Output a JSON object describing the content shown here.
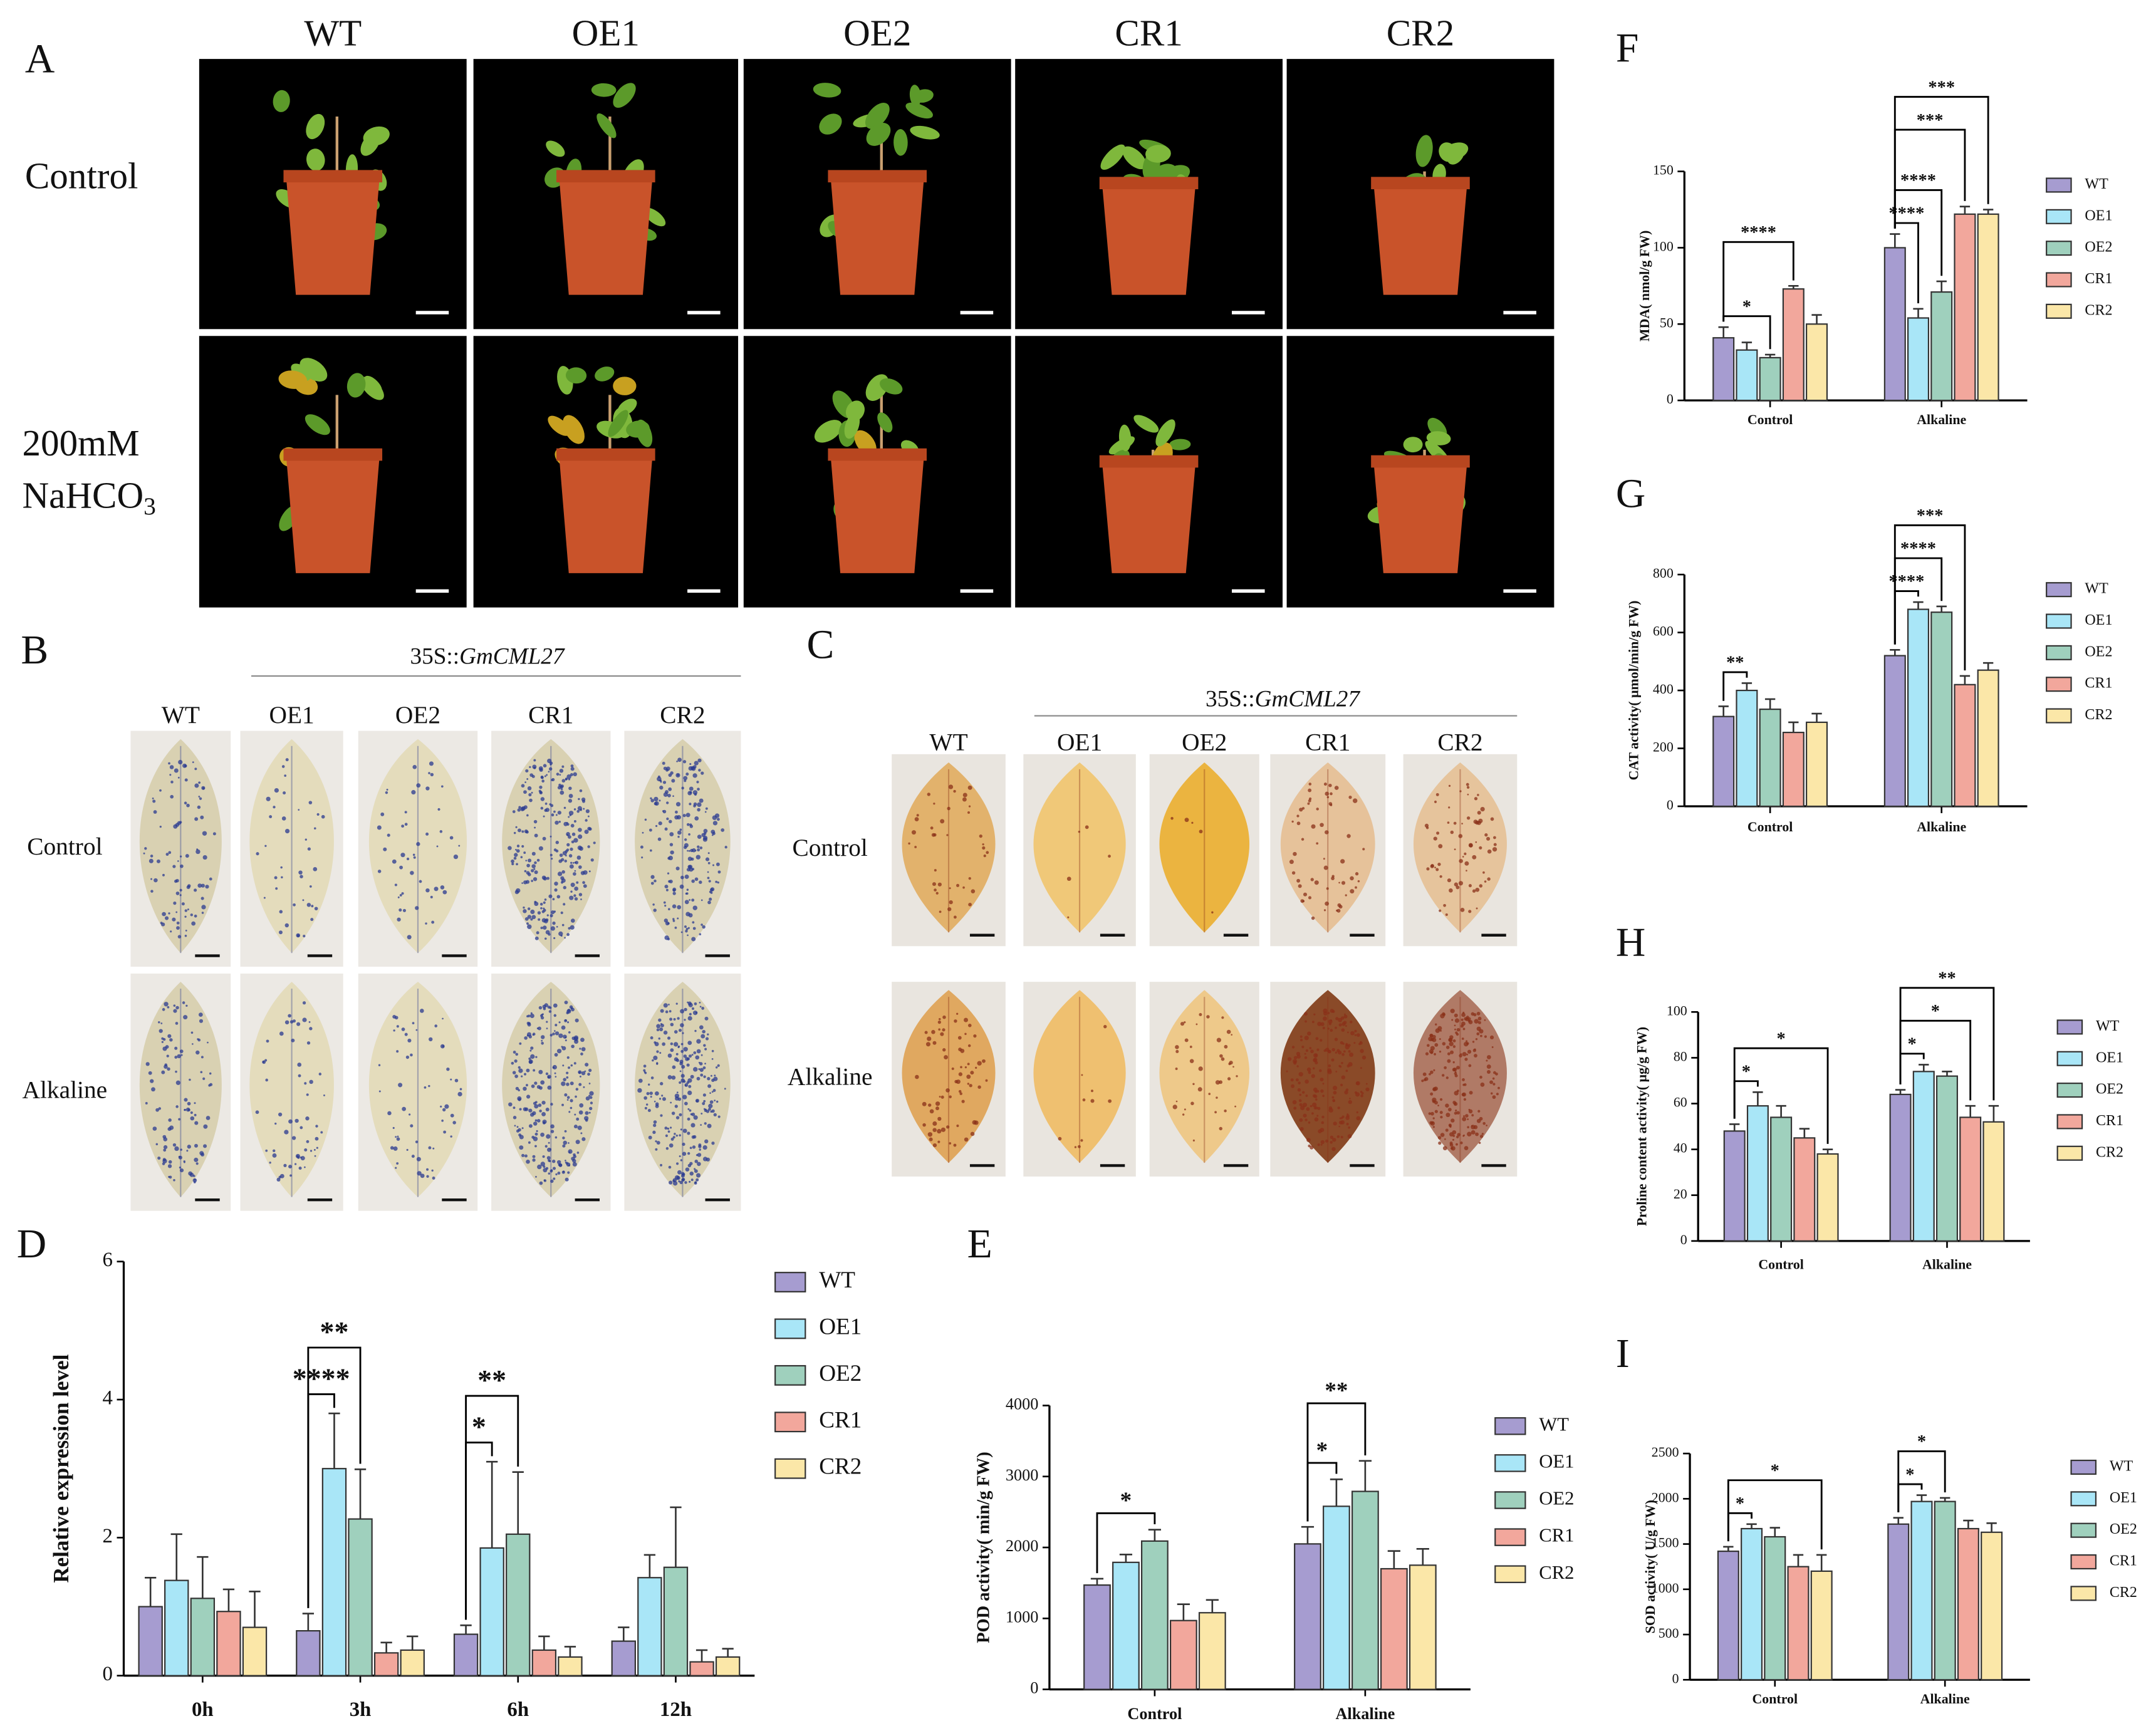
{
  "panel_a": {
    "label": "A",
    "columns": [
      "WT",
      "OE1",
      "OE2",
      "CR1",
      "CR2"
    ],
    "row_labels": {
      "control": "Control",
      "stress_line1": "200mM",
      "stress_line2": "NaHCO",
      "stress_subscript": "3"
    }
  },
  "panel_b": {
    "label": "B",
    "construct_prefix": "35S::",
    "construct_gene": "GmCML27",
    "columns": [
      "WT",
      "OE1",
      "OE2",
      "CR1",
      "CR2"
    ],
    "row_labels": [
      "Control",
      "Alkaline"
    ]
  },
  "panel_c": {
    "label": "C",
    "construct_prefix": "35S::",
    "construct_gene": "GmCML27",
    "columns": [
      "WT",
      "OE1",
      "OE2",
      "CR1",
      "CR2"
    ],
    "row_labels": [
      "Control",
      "Alkaline"
    ]
  },
  "chart_data": [
    {
      "type": "bar",
      "panel": "D",
      "ylabel": "Relative expression level",
      "categories": [
        "0h",
        "3h",
        "6h",
        "12h"
      ],
      "series": [
        {
          "name": "WT",
          "color": "#a69cd0",
          "values": [
            1.0,
            0.65,
            0.6,
            0.5
          ],
          "errors": [
            0.42,
            0.25,
            0.13,
            0.2
          ]
        },
        {
          "name": "OE1",
          "color": "#a9e6f7",
          "values": [
            1.38,
            3.0,
            1.85,
            1.42
          ],
          "errors": [
            0.67,
            0.8,
            1.25,
            0.33
          ]
        },
        {
          "name": "OE2",
          "color": "#9fd0bd",
          "values": [
            1.12,
            2.27,
            2.05,
            1.57
          ],
          "errors": [
            0.6,
            0.72,
            0.9,
            0.87
          ]
        },
        {
          "name": "CR1",
          "color": "#f2a79c",
          "values": [
            0.93,
            0.33,
            0.37,
            0.2
          ],
          "errors": [
            0.32,
            0.15,
            0.2,
            0.17
          ]
        },
        {
          "name": "CR2",
          "color": "#fbe7a8",
          "values": [
            0.7,
            0.37,
            0.27,
            0.27
          ],
          "errors": [
            0.52,
            0.2,
            0.15,
            0.12
          ]
        }
      ],
      "ylim": [
        0,
        6
      ],
      "yticks": [
        0,
        2,
        4,
        6
      ],
      "annotations": [
        {
          "text": "****",
          "category": "3h",
          "pair": [
            "WT",
            "OE1"
          ]
        },
        {
          "text": "**",
          "category": "3h",
          "pair": [
            "WT",
            "OE2"
          ]
        },
        {
          "text": "*",
          "category": "6h",
          "pair": [
            "WT",
            "OE1"
          ]
        },
        {
          "text": "**",
          "category": "6h",
          "pair": [
            "WT",
            "OE2"
          ]
        }
      ]
    },
    {
      "type": "bar",
      "panel": "E",
      "ylabel": "POD activity( min/g FW)",
      "categories": [
        "Control",
        "Alkaline"
      ],
      "series": [
        {
          "name": "WT",
          "color": "#a69cd0",
          "values": [
            1470,
            2050
          ],
          "errors": [
            90,
            240
          ]
        },
        {
          "name": "OE1",
          "color": "#a9e6f7",
          "values": [
            1790,
            2580
          ],
          "errors": [
            110,
            380
          ]
        },
        {
          "name": "OE2",
          "color": "#9fd0bd",
          "values": [
            2090,
            2790
          ],
          "errors": [
            160,
            430
          ]
        },
        {
          "name": "CR1",
          "color": "#f2a79c",
          "values": [
            970,
            1700
          ],
          "errors": [
            230,
            250
          ]
        },
        {
          "name": "CR2",
          "color": "#fbe7a8",
          "values": [
            1080,
            1750
          ],
          "errors": [
            180,
            230
          ]
        }
      ],
      "ylim": [
        0,
        4000
      ],
      "yticks": [
        0,
        1000,
        2000,
        3000,
        4000
      ],
      "annotations": [
        {
          "text": "*",
          "category": "Control",
          "pair": [
            "WT",
            "OE2"
          ]
        },
        {
          "text": "*",
          "category": "Alkaline",
          "pair": [
            "WT",
            "OE1"
          ]
        },
        {
          "text": "**",
          "category": "Alkaline",
          "pair": [
            "WT",
            "OE2"
          ]
        }
      ]
    },
    {
      "type": "bar",
      "panel": "F",
      "ylabel": "MDA( nmol/g FW)",
      "categories": [
        "Control",
        "Alkaline"
      ],
      "series": [
        {
          "name": "WT",
          "color": "#a69cd0",
          "values": [
            41,
            100
          ],
          "errors": [
            7,
            9
          ]
        },
        {
          "name": "OE1",
          "color": "#a9e6f7",
          "values": [
            33,
            54
          ],
          "errors": [
            5,
            6
          ]
        },
        {
          "name": "OE2",
          "color": "#9fd0bd",
          "values": [
            28,
            71
          ],
          "errors": [
            2,
            7
          ]
        },
        {
          "name": "CR1",
          "color": "#f2a79c",
          "values": [
            73,
            122
          ],
          "errors": [
            2,
            5
          ]
        },
        {
          "name": "CR2",
          "color": "#fbe7a8",
          "values": [
            50,
            122
          ],
          "errors": [
            6,
            3
          ]
        }
      ],
      "ylim": [
        0,
        150
      ],
      "yticks": [
        0,
        50,
        100,
        150
      ],
      "annotations": [
        {
          "text": "*",
          "category": "Control",
          "pair": [
            "WT",
            "OE2"
          ]
        },
        {
          "text": "****",
          "category": "Control",
          "pair": [
            "WT",
            "CR1"
          ]
        },
        {
          "text": "****",
          "category": "Alkaline",
          "pair": [
            "WT",
            "OE1"
          ]
        },
        {
          "text": "****",
          "category": "Alkaline",
          "pair": [
            "WT",
            "OE2"
          ]
        },
        {
          "text": "***",
          "category": "Alkaline",
          "pair": [
            "WT",
            "CR1"
          ]
        },
        {
          "text": "***",
          "category": "Alkaline",
          "pair": [
            "WT",
            "CR2"
          ]
        }
      ]
    },
    {
      "type": "bar",
      "panel": "G",
      "ylabel": "CAT activity( μmol/min/g FW)",
      "categories": [
        "Control",
        "Alkaline"
      ],
      "series": [
        {
          "name": "WT",
          "color": "#a69cd0",
          "values": [
            310,
            520
          ],
          "errors": [
            35,
            20
          ]
        },
        {
          "name": "OE1",
          "color": "#a9e6f7",
          "values": [
            400,
            680
          ],
          "errors": [
            25,
            25
          ]
        },
        {
          "name": "OE2",
          "color": "#9fd0bd",
          "values": [
            335,
            670
          ],
          "errors": [
            35,
            20
          ]
        },
        {
          "name": "CR1",
          "color": "#f2a79c",
          "values": [
            255,
            420
          ],
          "errors": [
            35,
            30
          ]
        },
        {
          "name": "CR2",
          "color": "#fbe7a8",
          "values": [
            290,
            470
          ],
          "errors": [
            30,
            25
          ]
        }
      ],
      "ylim": [
        0,
        800
      ],
      "yticks": [
        0,
        200,
        400,
        600,
        800
      ],
      "annotations": [
        {
          "text": "**",
          "category": "Control",
          "pair": [
            "WT",
            "OE1"
          ]
        },
        {
          "text": "****",
          "category": "Alkaline",
          "pair": [
            "WT",
            "OE1"
          ]
        },
        {
          "text": "****",
          "category": "Alkaline",
          "pair": [
            "WT",
            "OE2"
          ]
        },
        {
          "text": "***",
          "category": "Alkaline",
          "pair": [
            "WT",
            "CR1"
          ]
        }
      ]
    },
    {
      "type": "bar",
      "panel": "H",
      "ylabel": "Proline content activity( μg/g FW)",
      "categories": [
        "Control",
        "Alkaline"
      ],
      "series": [
        {
          "name": "WT",
          "color": "#a69cd0",
          "values": [
            48,
            64
          ],
          "errors": [
            3,
            2
          ]
        },
        {
          "name": "OE1",
          "color": "#a9e6f7",
          "values": [
            59,
            74
          ],
          "errors": [
            6,
            3
          ]
        },
        {
          "name": "OE2",
          "color": "#9fd0bd",
          "values": [
            54,
            72
          ],
          "errors": [
            5,
            2
          ]
        },
        {
          "name": "CR1",
          "color": "#f2a79c",
          "values": [
            45,
            54
          ],
          "errors": [
            4,
            5
          ]
        },
        {
          "name": "CR2",
          "color": "#fbe7a8",
          "values": [
            38,
            52
          ],
          "errors": [
            2,
            7
          ]
        }
      ],
      "ylim": [
        0,
        100
      ],
      "yticks": [
        0,
        20,
        40,
        60,
        80,
        100
      ],
      "annotations": [
        {
          "text": "*",
          "category": "Control",
          "pair": [
            "WT",
            "OE1"
          ]
        },
        {
          "text": "*",
          "category": "Control",
          "pair": [
            "WT",
            "CR2"
          ]
        },
        {
          "text": "*",
          "category": "Alkaline",
          "pair": [
            "WT",
            "OE1"
          ]
        },
        {
          "text": "*",
          "category": "Alkaline",
          "pair": [
            "WT",
            "CR1"
          ]
        },
        {
          "text": "**",
          "category": "Alkaline",
          "pair": [
            "WT",
            "CR2"
          ]
        }
      ]
    },
    {
      "type": "bar",
      "panel": "I",
      "ylabel": "SOD activity( U/g FW)",
      "categories": [
        "Control",
        "Alkaline"
      ],
      "series": [
        {
          "name": "WT",
          "color": "#a69cd0",
          "values": [
            1420,
            1720
          ],
          "errors": [
            50,
            70
          ]
        },
        {
          "name": "OE1",
          "color": "#a9e6f7",
          "values": [
            1670,
            1970
          ],
          "errors": [
            50,
            70
          ]
        },
        {
          "name": "OE2",
          "color": "#9fd0bd",
          "values": [
            1580,
            1970
          ],
          "errors": [
            100,
            40
          ]
        },
        {
          "name": "CR1",
          "color": "#f2a79c",
          "values": [
            1250,
            1670
          ],
          "errors": [
            130,
            90
          ]
        },
        {
          "name": "CR2",
          "color": "#fbe7a8",
          "values": [
            1200,
            1630
          ],
          "errors": [
            180,
            100
          ]
        }
      ],
      "ylim": [
        0,
        2500
      ],
      "yticks": [
        0,
        500,
        1000,
        1500,
        2000,
        2500
      ],
      "annotations": [
        {
          "text": "*",
          "category": "Control",
          "pair": [
            "WT",
            "OE1"
          ]
        },
        {
          "text": "*",
          "category": "Control",
          "pair": [
            "WT",
            "CR2"
          ]
        },
        {
          "text": "*",
          "category": "Alkaline",
          "pair": [
            "WT",
            "OE1"
          ]
        },
        {
          "text": "*",
          "category": "Alkaline",
          "pair": [
            "WT",
            "OE2"
          ]
        }
      ]
    }
  ]
}
